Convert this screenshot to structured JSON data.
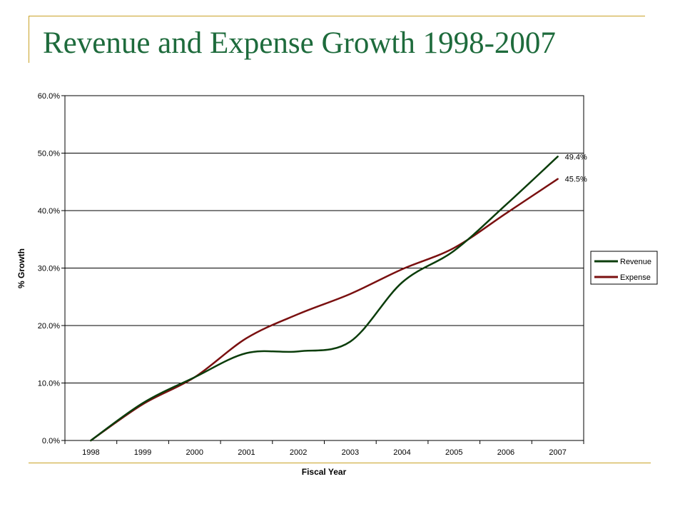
{
  "slide": {
    "title": "Revenue and Expense Growth 1998-2007"
  },
  "colors": {
    "frame": "#c9a227",
    "title": "#1e6b3c",
    "revenue": "#0b3d0b",
    "expense": "#7a1010",
    "gridline": "#000000"
  },
  "chart_data": {
    "type": "line",
    "title": "",
    "xlabel": "Fiscal Year",
    "ylabel": "% Growth",
    "categories": [
      "1998",
      "1999",
      "2000",
      "2001",
      "2002",
      "2003",
      "2004",
      "2005",
      "2006",
      "2007"
    ],
    "ylim": [
      0,
      60
    ],
    "yticks": [
      0,
      10,
      20,
      30,
      40,
      50,
      60
    ],
    "ytick_labels": [
      "0.0%",
      "10.0%",
      "20.0%",
      "30.0%",
      "40.0%",
      "50.0%",
      "60.0%"
    ],
    "grid": "horizontal",
    "legend": "right",
    "series": [
      {
        "name": "Revenue",
        "color": "#0b3d0b",
        "values": [
          0.0,
          6.5,
          11.0,
          15.2,
          15.5,
          17.2,
          27.5,
          33.0,
          41.0,
          49.4
        ],
        "end_label": "49.4%"
      },
      {
        "name": "Expense",
        "color": "#7a1010",
        "values": [
          0.0,
          6.3,
          11.0,
          17.8,
          22.0,
          25.5,
          29.8,
          33.5,
          39.5,
          45.5
        ],
        "end_label": "45.5%"
      }
    ]
  }
}
